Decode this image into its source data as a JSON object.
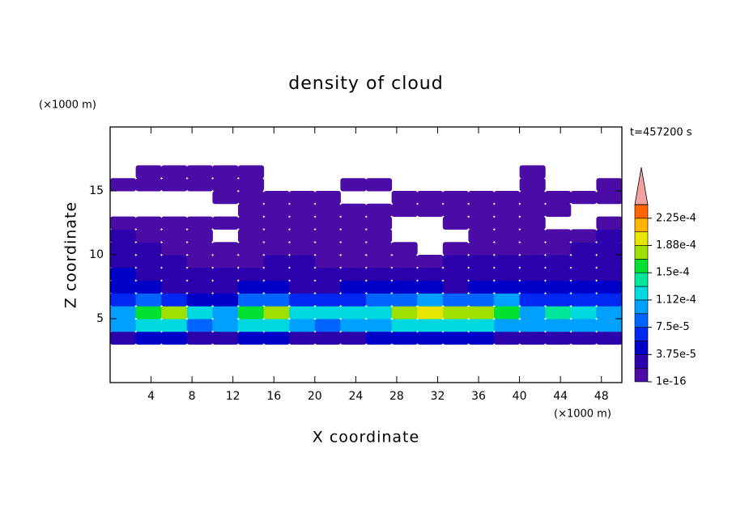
{
  "chart_data": {
    "type": "contour",
    "title": "density of cloud",
    "xlabel": "X coordinate",
    "ylabel": "Z coordinate",
    "xunit": "(×1000 m)",
    "yunit": "(×1000 m)",
    "annotation": "t=457200 s",
    "xlim": [
      0,
      50
    ],
    "ylim": [
      0,
      20
    ],
    "xticks": [
      4,
      8,
      12,
      16,
      20,
      24,
      28,
      32,
      36,
      40,
      44,
      48
    ],
    "yticks": [
      5,
      10,
      15
    ],
    "x": [
      1.25,
      3.75,
      6.25,
      8.75,
      11.25,
      13.75,
      16.25,
      18.75,
      21.25,
      23.75,
      26.25,
      28.75,
      31.25,
      33.75,
      36.25,
      38.75,
      41.25,
      43.75,
      46.25,
      48.75
    ],
    "z": [
      3.5,
      4.5,
      5.5,
      6.5,
      7.5,
      8.5,
      9.5,
      10.5,
      11.5,
      12.5,
      13.5,
      14.5,
      15.5,
      16.5
    ],
    "values": [
      [
        3e-05,
        4e-05,
        4e-05,
        3e-05,
        3e-05,
        4e-05,
        4e-05,
        3e-05,
        3e-05,
        3e-05,
        4e-05,
        4e-05,
        4e-05,
        4e-05,
        4e-05,
        3e-05,
        3e-05,
        3e-05,
        3e-05,
        3e-05
      ],
      [
        0.00011,
        0.00012,
        0.00012,
        9e-05,
        0.00011,
        0.00012,
        0.00013,
        0.0001,
        9e-05,
        0.0001,
        0.00011,
        0.00012,
        0.00013,
        0.00012,
        0.00012,
        0.00011,
        0.0001,
        0.00011,
        0.00011,
        0.0001
      ],
      [
        0.0001,
        0.00016,
        0.00017,
        0.00013,
        0.00011,
        0.00016,
        0.00018,
        0.00012,
        0.00013,
        0.00012,
        0.00013,
        0.00017,
        0.00019,
        0.00017,
        0.00018,
        0.00015,
        0.00011,
        0.00014,
        0.00013,
        0.00011
      ],
      [
        6e-05,
        8e-05,
        6e-05,
        5e-05,
        5e-05,
        8e-05,
        9e-05,
        6e-05,
        6e-05,
        7e-05,
        8e-05,
        9e-05,
        0.0001,
        8e-05,
        9e-05,
        0.0001,
        6e-05,
        6e-05,
        7e-05,
        6e-05
      ],
      [
        4e-05,
        4e-05,
        3e-05,
        3e-05,
        3e-05,
        4e-05,
        4e-05,
        3e-05,
        3e-05,
        4e-05,
        4e-05,
        4e-05,
        4e-05,
        3e-05,
        4e-05,
        4e-05,
        4e-05,
        4e-05,
        4e-05,
        4e-05
      ],
      [
        4e-05,
        3e-05,
        2e-05,
        2e-05,
        2e-05,
        2e-05,
        2e-05,
        2e-05,
        2e-05,
        2e-05,
        2e-05,
        2e-05,
        2e-05,
        2e-05,
        3e-05,
        3e-05,
        2e-05,
        2e-05,
        3e-05,
        3e-05
      ],
      [
        2e-05,
        2e-05,
        2e-05,
        1e-06,
        1e-06,
        1e-06,
        2e-05,
        2e-05,
        1e-06,
        1e-06,
        1e-06,
        1e-06,
        1e-06,
        2e-05,
        2e-05,
        2e-05,
        2e-05,
        2e-05,
        2e-05,
        2e-05
      ],
      [
        2e-05,
        2e-05,
        1e-06,
        1e-06,
        1e-06,
        1e-06,
        1e-06,
        1e-06,
        1e-06,
        1e-06,
        1e-06,
        1e-06,
        null,
        1e-06,
        1e-06,
        1e-06,
        1e-06,
        1e-06,
        2e-05,
        2e-05
      ],
      [
        2e-05,
        1e-06,
        1e-06,
        1e-06,
        null,
        1e-06,
        1e-06,
        1e-06,
        1e-06,
        1e-06,
        1e-06,
        null,
        null,
        null,
        1e-06,
        1e-06,
        1e-06,
        1e-06,
        1e-06,
        2e-05
      ],
      [
        1e-06,
        1e-06,
        1e-06,
        1e-06,
        1e-06,
        1e-06,
        1e-06,
        1e-06,
        1e-06,
        1e-06,
        1e-06,
        null,
        null,
        1e-06,
        1e-06,
        1e-06,
        1e-06,
        null,
        null,
        1e-06
      ],
      [
        null,
        null,
        null,
        null,
        null,
        1e-06,
        1e-06,
        1e-06,
        1e-06,
        1e-06,
        1e-06,
        1e-06,
        1e-06,
        1e-06,
        1e-06,
        1e-06,
        1e-06,
        1e-06,
        null,
        null
      ],
      [
        null,
        null,
        null,
        null,
        1e-06,
        1e-06,
        1e-06,
        1e-06,
        1e-06,
        null,
        null,
        1e-06,
        1e-06,
        1e-06,
        1e-06,
        1e-06,
        1e-06,
        1e-06,
        1e-06,
        1e-06
      ],
      [
        1e-06,
        1e-06,
        1e-06,
        1e-06,
        1e-06,
        1e-06,
        null,
        null,
        null,
        1e-06,
        1e-06,
        null,
        null,
        null,
        null,
        null,
        1e-06,
        null,
        null,
        1e-06
      ],
      [
        null,
        1e-06,
        1e-06,
        1e-06,
        1e-06,
        1e-06,
        null,
        null,
        null,
        null,
        null,
        null,
        null,
        null,
        null,
        null,
        1e-06,
        null,
        null,
        null
      ]
    ],
    "levels": [
      1e-16,
      1.875e-05,
      3.75e-05,
      5.625e-05,
      7.5e-05,
      9.375e-05,
      0.0001125,
      0.00013125,
      0.00015,
      0.00016875,
      0.0001875,
      0.00020625,
      0.000225,
      0.00024375
    ],
    "colors": [
      "#4a0ca4",
      "#2c00aa",
      "#0000c8",
      "#0028f0",
      "#0064ff",
      "#00a0ff",
      "#00d8e0",
      "#00e69a",
      "#00e030",
      "#9ee000",
      "#e6e600",
      "#ffb400",
      "#ff6400",
      "#ff2000"
    ],
    "extend_color": "#f4a0a0",
    "cticks": [
      {
        "value": 1e-16,
        "label": "1e-16"
      },
      {
        "value": 3.75e-05,
        "label": "3.75e-5"
      },
      {
        "value": 7.5e-05,
        "label": "7.5e-5"
      },
      {
        "value": 0.0001125,
        "label": "1.12e-4"
      },
      {
        "value": 0.00015,
        "label": "1.5e-4"
      },
      {
        "value": 0.0001875,
        "label": "1.88e-4"
      },
      {
        "value": 0.000225,
        "label": "2.25e-4"
      }
    ]
  }
}
